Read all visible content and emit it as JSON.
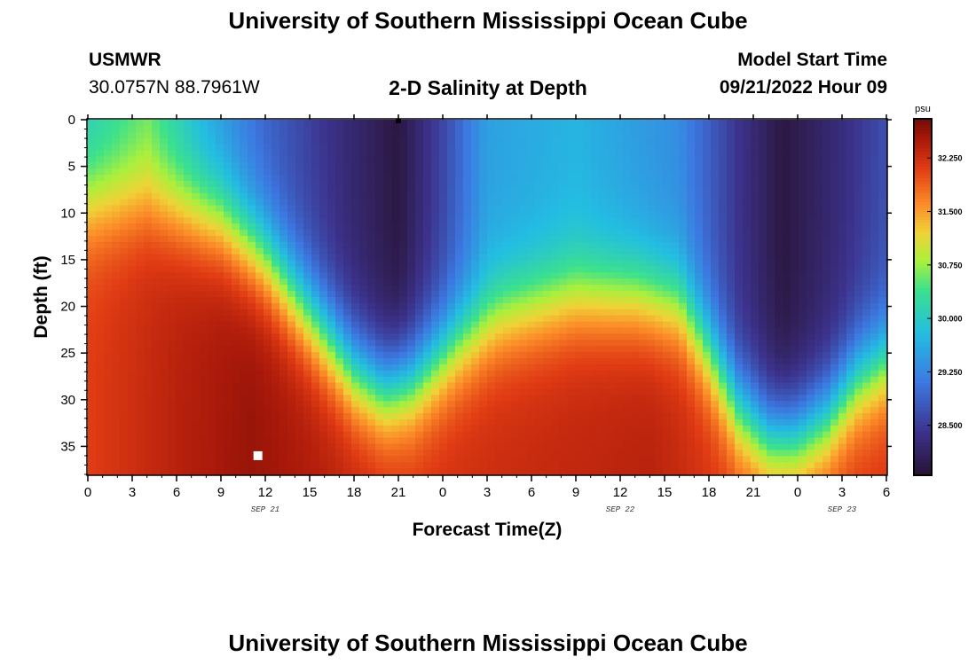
{
  "page": {
    "title": "University of Southern Mississippi Ocean Cube",
    "title_bottom": "University of Southern Mississippi Ocean Cube",
    "station": "USMWR",
    "coords": "30.0757N  88.7961W",
    "subtitle": "2-D Salinity at Depth",
    "model_label": "Model Start Time",
    "model_time": "09/21/2022 Hour 09"
  },
  "chart_data": {
    "type": "heatmap",
    "title": "2-D Salinity at Depth",
    "xlabel": "Forecast Time(Z)",
    "ylabel": "Depth (ft)",
    "x_range_hours": [
      0,
      54
    ],
    "x_tick_labels": [
      "0",
      "3",
      "6",
      "9",
      "12",
      "15",
      "18",
      "21",
      "0",
      "3",
      "6",
      "9",
      "12",
      "15",
      "18",
      "21",
      "0",
      "3",
      "6"
    ],
    "date_labels": [
      {
        "label": "SEP 21",
        "hour": 12
      },
      {
        "label": "SEP 22",
        "hour": 36
      },
      {
        "label": "SEP 23",
        "hour": 51
      }
    ],
    "y_range_ft": [
      0,
      38
    ],
    "y_ticks": [
      0,
      5,
      10,
      15,
      20,
      25,
      30,
      35
    ],
    "colorbar": {
      "unit": "psu",
      "ticks": [
        "32.250",
        "31.500",
        "30.750",
        "30.000",
        "29.250",
        "28.500"
      ],
      "range": [
        27.8,
        32.8
      ]
    },
    "markers": [
      {
        "type": "station-depth",
        "hour": 11.5,
        "depth": 36
      },
      {
        "type": "surface",
        "hour": 21,
        "depth": 0
      }
    ],
    "halocline_depth_ft": [
      {
        "hour": 0,
        "depth": 9
      },
      {
        "hour": 4,
        "depth": 8.5
      },
      {
        "hour": 9,
        "depth": 11
      },
      {
        "hour": 12,
        "depth": 15
      },
      {
        "hour": 15.5,
        "depth": 22
      },
      {
        "hour": 18,
        "depth": 27
      },
      {
        "hour": 20,
        "depth": 29
      },
      {
        "hour": 22,
        "depth": 28
      },
      {
        "hour": 25,
        "depth": 24
      },
      {
        "hour": 28,
        "depth": 21
      },
      {
        "hour": 33,
        "depth": 19
      },
      {
        "hour": 37,
        "depth": 19
      },
      {
        "hour": 40,
        "depth": 20
      },
      {
        "hour": 42,
        "depth": 25
      },
      {
        "hour": 44,
        "depth": 31
      },
      {
        "hour": 46,
        "depth": 34
      },
      {
        "hour": 48,
        "depth": 34
      },
      {
        "hour": 50,
        "depth": 32
      },
      {
        "hour": 52,
        "depth": 28
      },
      {
        "hour": 54,
        "depth": 26
      }
    ],
    "surface_salinity_psu": [
      {
        "hour": 0,
        "value": 30.0
      },
      {
        "hour": 4,
        "value": 30.5
      },
      {
        "hour": 8,
        "value": 29.6
      },
      {
        "hour": 12,
        "value": 28.9
      },
      {
        "hour": 17,
        "value": 28.3
      },
      {
        "hour": 21,
        "value": 27.9
      },
      {
        "hour": 24,
        "value": 28.6
      },
      {
        "hour": 27,
        "value": 29.5
      },
      {
        "hour": 33,
        "value": 29.7
      },
      {
        "hour": 40,
        "value": 29.3
      },
      {
        "hour": 44,
        "value": 28.4
      },
      {
        "hour": 47,
        "value": 27.9
      },
      {
        "hour": 51,
        "value": 28.3
      },
      {
        "hour": 54,
        "value": 28.7
      }
    ],
    "bottom_salinity_psu": [
      {
        "hour": 0,
        "value": 32.1
      },
      {
        "hour": 6,
        "value": 32.4
      },
      {
        "hour": 11,
        "value": 32.6
      },
      {
        "hour": 17,
        "value": 32.4
      },
      {
        "hour": 22,
        "value": 32.2
      },
      {
        "hour": 30,
        "value": 32.3
      },
      {
        "hour": 38,
        "value": 32.4
      },
      {
        "hour": 44,
        "value": 32.1
      },
      {
        "hour": 48,
        "value": 32.1
      },
      {
        "hour": 54,
        "value": 32.2
      }
    ]
  }
}
